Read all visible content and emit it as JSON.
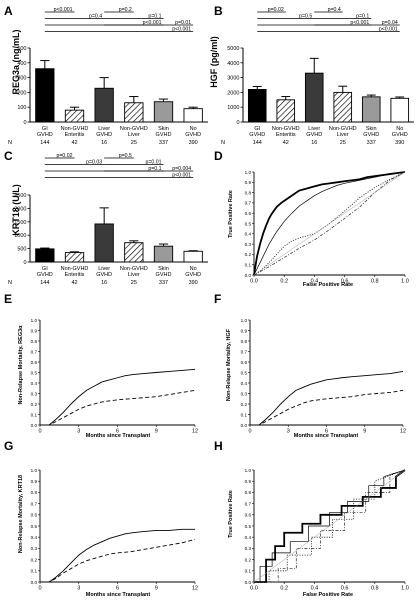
{
  "colors": {
    "gi": "#000000",
    "nonGvhd": "#ffffff",
    "liver": "#3a3a3a",
    "nonGvhdLiver": "#ffffff",
    "skin": "#9a9a9a",
    "noGvhd": "#ffffff"
  },
  "panels": [
    "A",
    "B",
    "C",
    "D",
    "E",
    "F",
    "G",
    "H"
  ],
  "n_label": "N",
  "group_labels": [
    [
      "GI",
      "GVHD"
    ],
    [
      "Non-GVHD",
      "Enteritis"
    ],
    [
      "Liver",
      "GVHD"
    ],
    [
      "Non-GVHD",
      "Liver"
    ],
    [
      "Skin",
      "GVHD"
    ],
    [
      "No",
      "GVHD"
    ]
  ],
  "group_n": [
    "144",
    "42",
    "16",
    "25",
    "337",
    "390"
  ],
  "chart_data": [
    {
      "panel": "A",
      "type": "bar",
      "ylabel": "REG3a (ng/mL)",
      "ylim": [
        0,
        500
      ],
      "yticks": [
        "0",
        "100",
        "200",
        "300",
        "400",
        "500"
      ],
      "values": [
        360,
        80,
        228,
        130,
        137,
        90
      ],
      "errors": [
        55,
        20,
        72,
        42,
        18,
        10
      ],
      "hatched": [
        false,
        true,
        false,
        true,
        false,
        false
      ],
      "brackets": [
        {
          "from": 0,
          "to": 1,
          "label": "p<0.001",
          "level": 0
        },
        {
          "from": 0,
          "to": 2,
          "label": "p=0.4",
          "level": 1
        },
        {
          "from": 0,
          "to": 4,
          "label": "p<0.001",
          "level": 2
        },
        {
          "from": 0,
          "to": 5,
          "label": "p<0.001",
          "level": 3
        },
        {
          "from": 2,
          "to": 3,
          "label": "p=0.2",
          "level": 0
        },
        {
          "from": 2,
          "to": 4,
          "label": "p=0.1",
          "level": 1
        },
        {
          "from": 2,
          "to": 5,
          "label": "p=0.01",
          "level": 2
        }
      ]
    },
    {
      "panel": "B",
      "type": "bar",
      "ylabel": "HGF (pg/ml)",
      "ylim": [
        0,
        5000
      ],
      "yticks": [
        "0",
        "1000",
        "2000",
        "3000",
        "4000",
        "5000"
      ],
      "values": [
        2200,
        1500,
        3300,
        2000,
        1700,
        1600
      ],
      "errors": [
        200,
        220,
        1000,
        420,
        120,
        90
      ],
      "hatched": [
        false,
        true,
        false,
        true,
        false,
        false
      ],
      "brackets": [
        {
          "from": 0,
          "to": 1,
          "label": "p=0.02",
          "level": 0
        },
        {
          "from": 0,
          "to": 2,
          "label": "p=0.5",
          "level": 1
        },
        {
          "from": 0,
          "to": 4,
          "label": "p<0.001",
          "level": 2
        },
        {
          "from": 0,
          "to": 5,
          "label": "p<0.001",
          "level": 3
        },
        {
          "from": 2,
          "to": 3,
          "label": "p=0.4",
          "level": 0
        },
        {
          "from": 2,
          "to": 4,
          "label": "p=0.1",
          "level": 1
        },
        {
          "from": 2,
          "to": 5,
          "label": "p=0.04",
          "level": 2
        }
      ]
    },
    {
      "panel": "C",
      "type": "bar",
      "ylabel": "KRT18 (U/L)",
      "ylim": [
        0,
        2500
      ],
      "yticks": [
        "0",
        "500",
        "1000",
        "1500",
        "2000",
        "2500"
      ],
      "values": [
        490,
        350,
        1420,
        720,
        590,
        400
      ],
      "errors": [
        30,
        30,
        600,
        70,
        80,
        20
      ],
      "hatched": [
        false,
        true,
        false,
        true,
        false,
        false
      ],
      "brackets": [
        {
          "from": 0,
          "to": 1,
          "label": "p=0.02",
          "level": 0
        },
        {
          "from": 0,
          "to": 2,
          "label": "p=0.03",
          "level": 1
        },
        {
          "from": 0,
          "to": 4,
          "label": "p=0.1",
          "level": 2
        },
        {
          "from": 0,
          "to": 5,
          "label": "p<0.001",
          "level": 3
        },
        {
          "from": 2,
          "to": 3,
          "label": "p=0.5",
          "level": 0
        },
        {
          "from": 2,
          "to": 4,
          "label": "p=0.01",
          "level": 1
        },
        {
          "from": 2,
          "to": 5,
          "label": "p=0.004",
          "level": 2
        }
      ]
    },
    {
      "panel": "D",
      "type": "line",
      "xlabel": "False Positive Rate",
      "ylabel": "True Positive Rate",
      "xlim": [
        0,
        1
      ],
      "ylim": [
        0,
        1
      ],
      "xticks": [
        "0.0",
        "0.2",
        "0.4",
        "0.6",
        "0.8",
        "1.0"
      ],
      "yticks": [
        "0.0",
        "0.1",
        "0.2",
        "0.3",
        "0.4",
        "0.5",
        "0.6",
        "0.7",
        "0.8",
        "0.9",
        "1.0"
      ],
      "series": [
        {
          "style": "thick",
          "x": [
            0,
            0.02,
            0.04,
            0.06,
            0.08,
            0.1,
            0.12,
            0.15,
            0.18,
            0.22,
            0.26,
            0.3,
            0.35,
            0.4,
            0.45,
            0.5,
            0.55,
            0.6,
            0.65,
            0.7,
            0.75,
            0.8,
            0.85,
            0.9,
            0.95,
            1.0
          ],
          "y": [
            0,
            0.18,
            0.3,
            0.4,
            0.48,
            0.55,
            0.6,
            0.66,
            0.7,
            0.74,
            0.78,
            0.82,
            0.84,
            0.86,
            0.88,
            0.89,
            0.9,
            0.91,
            0.92,
            0.93,
            0.95,
            0.96,
            0.97,
            0.98,
            0.99,
            1.0
          ]
        },
        {
          "style": "thin",
          "x": [
            0,
            0.05,
            0.1,
            0.15,
            0.2,
            0.25,
            0.3,
            0.35,
            0.4,
            0.45,
            0.5,
            0.55,
            0.6,
            0.7,
            0.8,
            0.9,
            1.0
          ],
          "y": [
            0,
            0.15,
            0.3,
            0.42,
            0.52,
            0.6,
            0.67,
            0.72,
            0.77,
            0.81,
            0.84,
            0.87,
            0.89,
            0.92,
            0.95,
            0.98,
            1.0
          ]
        },
        {
          "style": "dotted",
          "x": [
            0,
            0.05,
            0.1,
            0.15,
            0.2,
            0.25,
            0.3,
            0.4,
            0.5,
            0.6,
            0.7,
            0.8,
            0.9,
            1.0
          ],
          "y": [
            0,
            0.05,
            0.12,
            0.2,
            0.28,
            0.33,
            0.36,
            0.4,
            0.5,
            0.62,
            0.75,
            0.85,
            0.93,
            1.0
          ]
        },
        {
          "style": "dashdot",
          "x": [
            0,
            0.1,
            0.2,
            0.3,
            0.4,
            0.5,
            0.6,
            0.7,
            0.8,
            0.9,
            1.0
          ],
          "y": [
            0,
            0.08,
            0.17,
            0.26,
            0.34,
            0.44,
            0.55,
            0.66,
            0.8,
            0.92,
            1.0
          ]
        },
        {
          "style": "diagonal",
          "x": [
            0,
            1
          ],
          "y": [
            0,
            1
          ]
        }
      ]
    },
    {
      "panel": "E",
      "type": "line",
      "xlabel": "Months since Transplant",
      "ylabel": "Non-Relapse Mortality, REG3α",
      "xlim": [
        0,
        12
      ],
      "ylim": [
        0,
        1
      ],
      "xticks": [
        "0",
        "3",
        "6",
        "9",
        "12"
      ],
      "yticks": [
        "0.0",
        "0.1",
        "0.2",
        "0.3",
        "0.4",
        "0.5",
        "0.6",
        "0.7",
        "0.8",
        "0.9",
        "1.0"
      ],
      "series": [
        {
          "style": "solid",
          "x": [
            0,
            0.7,
            1.2,
            1.8,
            2.4,
            3.0,
            3.6,
            4.2,
            4.8,
            5.4,
            6.0,
            6.6,
            7.2,
            8.0,
            9.0,
            10.0,
            11.0,
            12.0
          ],
          "y": [
            0,
            0.0,
            0.05,
            0.12,
            0.2,
            0.27,
            0.33,
            0.37,
            0.41,
            0.43,
            0.45,
            0.47,
            0.48,
            0.49,
            0.5,
            0.51,
            0.52,
            0.53
          ]
        },
        {
          "style": "dashed",
          "x": [
            0,
            0.7,
            1.2,
            1.8,
            2.4,
            3.0,
            3.6,
            4.2,
            4.8,
            5.4,
            6.0,
            7.0,
            8.0,
            9.0,
            10.0,
            11.0,
            12.0
          ],
          "y": [
            0,
            0.0,
            0.03,
            0.07,
            0.11,
            0.15,
            0.18,
            0.2,
            0.22,
            0.23,
            0.24,
            0.25,
            0.26,
            0.27,
            0.29,
            0.31,
            0.33
          ]
        }
      ]
    },
    {
      "panel": "F",
      "type": "line",
      "xlabel": "Months since Transplant",
      "ylabel": "Non-Relapse Mortality, HGF",
      "xlim": [
        0,
        12
      ],
      "ylim": [
        0,
        1
      ],
      "xticks": [
        "0",
        "3",
        "6",
        "9",
        "12"
      ],
      "yticks": [
        "0.0",
        "0.1",
        "0.2",
        "0.3",
        "0.4",
        "0.5",
        "0.6",
        "0.7",
        "0.8",
        "0.9",
        "1.0"
      ],
      "series": [
        {
          "style": "solid",
          "x": [
            0,
            0.7,
            1.2,
            1.8,
            2.4,
            3.0,
            3.6,
            4.2,
            4.8,
            5.4,
            6.0,
            6.6,
            7.2,
            8.0,
            9.0,
            10.0,
            11.0,
            12.0
          ],
          "y": [
            0,
            0.0,
            0.05,
            0.12,
            0.2,
            0.27,
            0.33,
            0.36,
            0.39,
            0.41,
            0.43,
            0.44,
            0.45,
            0.46,
            0.47,
            0.48,
            0.49,
            0.51
          ]
        },
        {
          "style": "dashed",
          "x": [
            0,
            0.7,
            1.2,
            1.8,
            2.4,
            3.0,
            3.6,
            4.2,
            4.8,
            5.4,
            6.0,
            7.0,
            8.0,
            9.0,
            10.0,
            11.0,
            12.0
          ],
          "y": [
            0,
            0.0,
            0.03,
            0.07,
            0.11,
            0.15,
            0.18,
            0.21,
            0.23,
            0.24,
            0.25,
            0.26,
            0.27,
            0.29,
            0.3,
            0.31,
            0.33
          ]
        }
      ]
    },
    {
      "panel": "G",
      "type": "line",
      "xlabel": "Months since Transplant",
      "ylabel": "Non-Relapse Mortality, KRT18",
      "xlim": [
        0,
        12
      ],
      "ylim": [
        0,
        1
      ],
      "xticks": [
        "0",
        "3",
        "6",
        "9",
        "12"
      ],
      "yticks": [
        "0.0",
        "0.1",
        "0.2",
        "0.3",
        "0.4",
        "0.5",
        "0.6",
        "0.7",
        "0.8",
        "0.9",
        "1.0"
      ],
      "series": [
        {
          "style": "solid",
          "x": [
            0,
            0.7,
            1.2,
            1.8,
            2.4,
            3.0,
            3.6,
            4.2,
            4.8,
            5.4,
            6.0,
            6.6,
            7.2,
            8.0,
            9.0,
            10.0,
            11.0,
            12.0
          ],
          "y": [
            0,
            0.0,
            0.04,
            0.1,
            0.17,
            0.24,
            0.29,
            0.33,
            0.36,
            0.39,
            0.41,
            0.43,
            0.44,
            0.45,
            0.46,
            0.46,
            0.47,
            0.47
          ]
        },
        {
          "style": "dashed",
          "x": [
            0,
            0.7,
            1.2,
            1.8,
            2.4,
            3.0,
            3.6,
            4.2,
            4.8,
            5.4,
            6.0,
            7.0,
            8.0,
            9.0,
            10.0,
            11.0,
            12.0
          ],
          "y": [
            0,
            0.0,
            0.03,
            0.08,
            0.12,
            0.16,
            0.19,
            0.21,
            0.23,
            0.25,
            0.26,
            0.27,
            0.29,
            0.31,
            0.33,
            0.35,
            0.38
          ]
        }
      ]
    },
    {
      "panel": "H",
      "type": "line",
      "xlabel": "False Positive Rate",
      "ylabel": "True Positive Rate",
      "xlim": [
        0,
        1
      ],
      "ylim": [
        0,
        1
      ],
      "xticks": [
        "0.0",
        "0.2",
        "0.4",
        "0.6",
        "0.8",
        "1.0"
      ],
      "yticks": [
        "0.0",
        "0.1",
        "0.2",
        "0.3",
        "0.4",
        "0.5",
        "0.6",
        "0.7",
        "0.8",
        "0.9",
        "1.0"
      ],
      "series": [
        {
          "style": "thick",
          "x": [
            0,
            0.08,
            0.08,
            0.14,
            0.14,
            0.2,
            0.2,
            0.32,
            0.32,
            0.44,
            0.44,
            0.58,
            0.58,
            0.72,
            0.72,
            0.84,
            0.84,
            0.94,
            0.94,
            1.0
          ],
          "y": [
            0,
            0,
            0.2,
            0.2,
            0.32,
            0.32,
            0.44,
            0.44,
            0.52,
            0.52,
            0.6,
            0.6,
            0.68,
            0.68,
            0.76,
            0.76,
            0.84,
            0.84,
            0.94,
            1.0
          ]
        },
        {
          "style": "thin",
          "x": [
            0,
            0.04,
            0.04,
            0.12,
            0.12,
            0.24,
            0.24,
            0.36,
            0.36,
            0.5,
            0.5,
            0.62,
            0.62,
            0.76,
            0.76,
            0.86,
            0.86,
            1.0
          ],
          "y": [
            0,
            0,
            0.14,
            0.14,
            0.26,
            0.26,
            0.36,
            0.36,
            0.5,
            0.5,
            0.62,
            0.62,
            0.72,
            0.72,
            0.86,
            0.86,
            0.94,
            1.0
          ]
        },
        {
          "style": "dotted",
          "x": [
            0,
            0.1,
            0.1,
            0.22,
            0.22,
            0.38,
            0.38,
            0.52,
            0.52,
            0.66,
            0.66,
            0.8,
            0.8,
            1.0
          ],
          "y": [
            0,
            0,
            0.1,
            0.1,
            0.24,
            0.24,
            0.4,
            0.4,
            0.56,
            0.56,
            0.74,
            0.74,
            0.9,
            1.0
          ]
        },
        {
          "style": "dashdot",
          "x": [
            0,
            0.16,
            0.16,
            0.28,
            0.28,
            0.44,
            0.44,
            0.6,
            0.6,
            0.74,
            0.74,
            0.9,
            0.9,
            1.0
          ],
          "y": [
            0,
            0,
            0.12,
            0.12,
            0.3,
            0.3,
            0.46,
            0.46,
            0.62,
            0.62,
            0.8,
            0.8,
            0.96,
            1.0
          ]
        },
        {
          "style": "diagonal",
          "x": [
            0,
            1
          ],
          "y": [
            0,
            1
          ]
        }
      ]
    }
  ]
}
